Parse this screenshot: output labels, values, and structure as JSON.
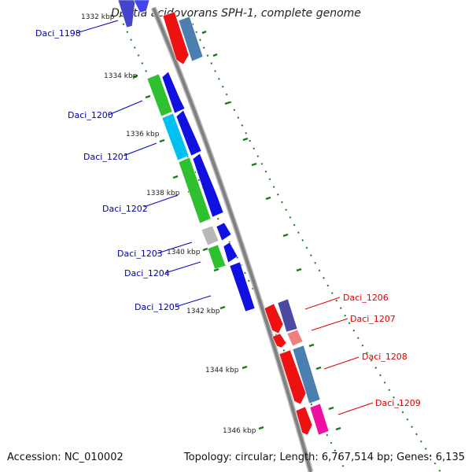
{
  "title": "Delftia acidovorans SPH-1, complete genome",
  "accession": "Accession: NC_010002",
  "summary": "Topology: circular; Length: 6,767,514 bp; Genes: 6,135",
  "colors": {
    "backbone": "#888888",
    "reverse_label": "#0000aa",
    "forward_label": "#dd0000",
    "tick": "#1a7a1a"
  },
  "kbp_labels": [
    "1332 kbp",
    "1334 kbp",
    "1336 kbp",
    "1338 kbp",
    "1340 kbp",
    "1342 kbp",
    "1344 kbp",
    "1346 kbp"
  ],
  "gene_labels": {
    "reverse": [
      "Daci_1198",
      "Daci_1200",
      "Daci_1201",
      "Daci_1202",
      "Daci_1203",
      "Daci_1204",
      "Daci_1205"
    ],
    "forward": [
      "Daci_1206",
      "Daci_1207",
      "Daci_1208",
      "Daci_1209"
    ]
  }
}
